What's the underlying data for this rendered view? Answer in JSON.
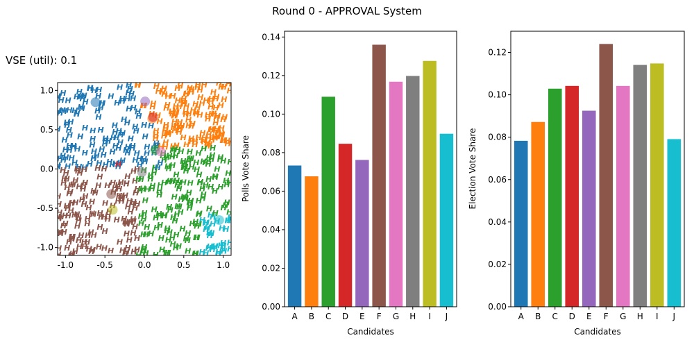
{
  "figure": {
    "title": "Round 0 - APPROVAL System",
    "vse_label": "VSE (util): 0.1"
  },
  "colors": {
    "A": "#1f77b4",
    "B": "#ff7f0e",
    "C": "#2ca02c",
    "D": "#d62728",
    "E": "#9467bd",
    "F": "#8c564b",
    "G": "#e377c2",
    "H": "#7f7f7f",
    "I": "#bcbd22",
    "J": "#17becf"
  },
  "chart_data": [
    {
      "type": "scatter",
      "title": "",
      "xlabel": "",
      "ylabel": "",
      "xlim": [
        -1.1,
        1.1
      ],
      "ylim": [
        -1.1,
        1.1
      ],
      "xticks": [
        "-1.0",
        "-0.5",
        "0.0",
        "0.5",
        "1.0"
      ],
      "yticks": [
        "-1.0",
        "-0.5",
        "0.0",
        "0.5",
        "1.0"
      ],
      "voter_marker": "H",
      "voter_regions": [
        {
          "candidate": "A",
          "label": "A voters",
          "approx_extent": "upper-left, x from -1.1 to 0.2, y from 0.0 to 1.1"
        },
        {
          "candidate": "B",
          "label": "B voters",
          "approx_extent": "upper-right, x from 0.1 to 1.1, y from 0.3 to 1.1"
        },
        {
          "candidate": "C",
          "label": "C voters",
          "approx_extent": "center-right, x from -0.1 to 1.1, y from -1.0 to 0.3"
        },
        {
          "candidate": "F",
          "label": "F voters",
          "approx_extent": "lower-left, x from -1.1 to 0.1, y from -1.1 to 0.0"
        },
        {
          "candidate": "J",
          "label": "J voters",
          "approx_extent": "lower-right corner, x from 0.7 to 1.1, y from -1.1 to -0.6"
        },
        {
          "candidate": "D",
          "label": "D voters",
          "approx_extent": "single voter near (-0.35, 0.05)"
        }
      ],
      "candidates": [
        {
          "name": "A",
          "x": -0.62,
          "y": 0.85
        },
        {
          "name": "B",
          "x": 0.1,
          "y": 0.64
        },
        {
          "name": "C",
          "x": 0.14,
          "y": 0.24
        },
        {
          "name": "D",
          "x": 0.11,
          "y": 0.66
        },
        {
          "name": "E",
          "x": 0.01,
          "y": 0.86
        },
        {
          "name": "F",
          "x": -0.42,
          "y": -0.32
        },
        {
          "name": "G",
          "x": 0.21,
          "y": 0.22
        },
        {
          "name": "H",
          "x": -0.03,
          "y": -0.04
        },
        {
          "name": "I",
          "x": -0.4,
          "y": -0.52
        },
        {
          "name": "J",
          "x": 0.95,
          "y": -0.65
        }
      ]
    },
    {
      "type": "bar",
      "title": "",
      "xlabel": "Candidates",
      "ylabel": "Polls Vote Share",
      "categories": [
        "A",
        "B",
        "C",
        "D",
        "E",
        "F",
        "G",
        "H",
        "I",
        "J"
      ],
      "values": [
        0.0733,
        0.0677,
        0.109,
        0.0846,
        0.0762,
        0.136,
        0.1168,
        0.1198,
        0.1276,
        0.0898
      ],
      "ylim": [
        0,
        0.143
      ],
      "yticks": [
        "0.00",
        "0.02",
        "0.04",
        "0.06",
        "0.08",
        "0.10",
        "0.12",
        "0.14"
      ]
    },
    {
      "type": "bar",
      "title": "",
      "xlabel": "Candidates",
      "ylabel": "Election Vote Share",
      "categories": [
        "A",
        "B",
        "C",
        "D",
        "E",
        "F",
        "G",
        "H",
        "I",
        "J"
      ],
      "values": [
        0.0783,
        0.0872,
        0.1029,
        0.1042,
        0.0925,
        0.124,
        0.1042,
        0.1141,
        0.1148,
        0.0791
      ],
      "ylim": [
        0,
        0.13
      ],
      "yticks": [
        "0.00",
        "0.02",
        "0.04",
        "0.06",
        "0.08",
        "0.10",
        "0.12"
      ]
    }
  ]
}
